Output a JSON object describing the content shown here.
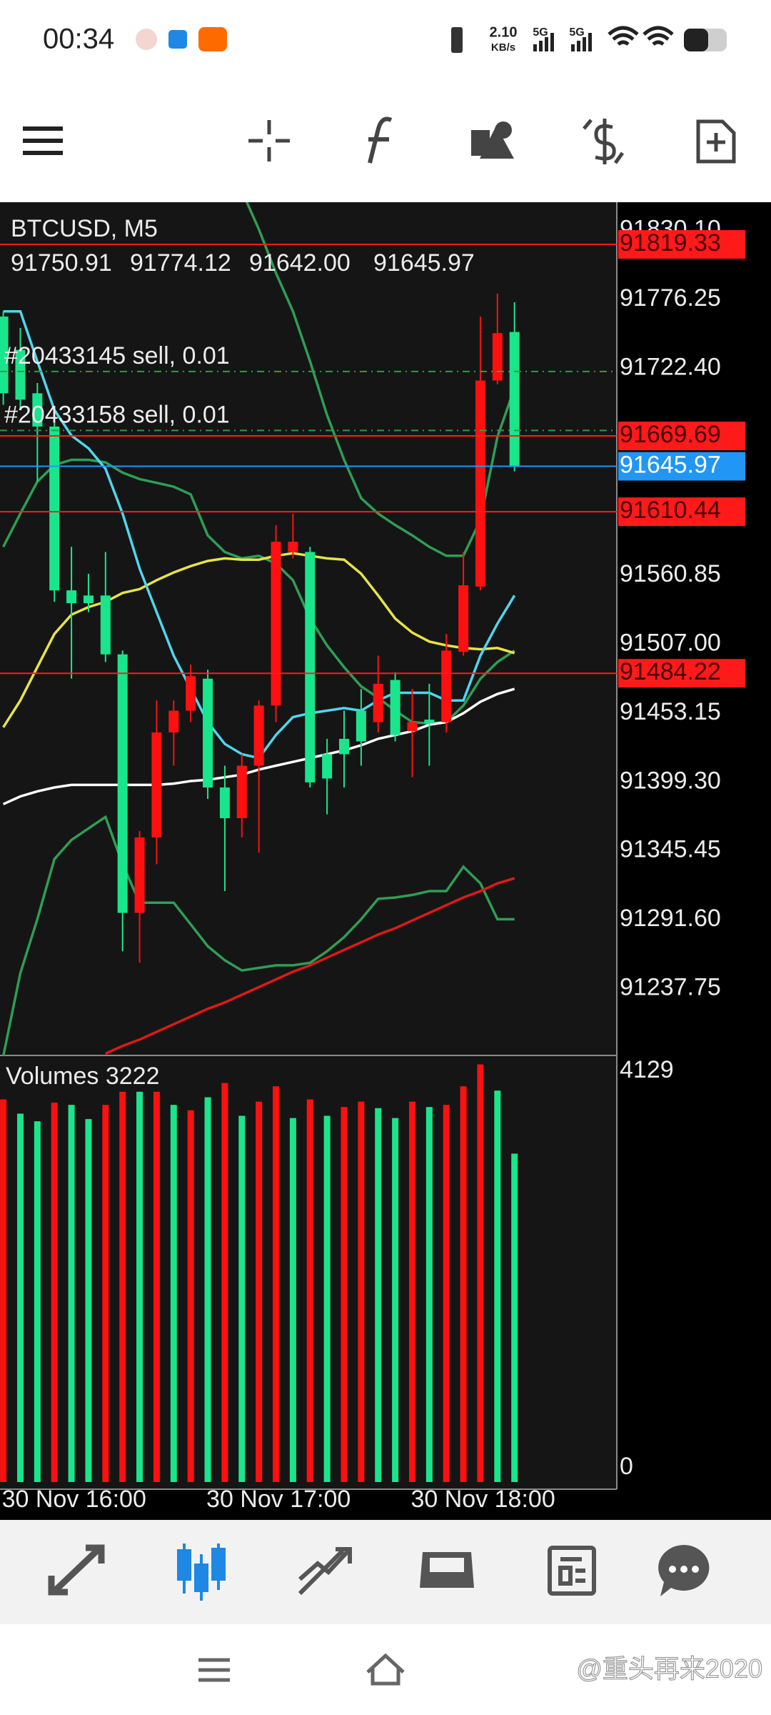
{
  "status_bar": {
    "time": "00:34",
    "net_speed": "2.10",
    "net_unit": "KB/s",
    "signal_1": "5G",
    "signal_2": "5G"
  },
  "chart_data": {
    "type": "candlestick",
    "symbol_title": "BTCUSD, M5",
    "last_ohlc_labels": [
      "91750.91",
      "91774.12",
      "91642.00",
      "91645.97"
    ],
    "categories": [
      "30 Nov 16:00",
      null,
      null,
      null,
      null,
      null,
      null,
      null,
      null,
      null,
      null,
      null,
      "30 Nov 17:00",
      null,
      null,
      null,
      null,
      null,
      null,
      null,
      null,
      null,
      null,
      null,
      "30 Nov 18:00",
      null,
      null,
      null,
      null,
      null,
      null
    ],
    "open": [
      91763,
      91737,
      91703,
      91677,
      91549,
      91545,
      91545,
      91499,
      91297,
      91356,
      91438,
      91455,
      91480,
      91395,
      91371,
      91412,
      91459,
      91579,
      91579,
      91421,
      91433,
      91455,
      91446,
      91479,
      91439,
      91448,
      91446,
      91501,
      91552,
      91713,
      91750.91
    ],
    "high": [
      91767,
      91754,
      91711,
      91686,
      91583,
      91562,
      91579,
      91502,
      91361,
      91463,
      91463,
      91491,
      91487,
      91412,
      91421,
      91463,
      91600,
      91609,
      91583,
      91433,
      91455,
      91472,
      91498,
      91485,
      91472,
      91476,
      91515,
      91579,
      91763,
      91781,
      91774.12
    ],
    "low": [
      91694,
      91690,
      91634,
      91540,
      91480,
      91532,
      91493,
      91267,
      91258,
      91335,
      91412,
      91446,
      91386,
      91314,
      91356,
      91344,
      91446,
      91574,
      91395,
      91374,
      91395,
      91412,
      91438,
      91431,
      91403,
      91412,
      91438,
      91498,
      91549,
      91710,
      91642
    ],
    "close": [
      91703,
      91698,
      91677,
      91549,
      91539,
      91539,
      91499,
      91297,
      91356,
      91438,
      91455,
      91482,
      91395,
      91371,
      91412,
      91459,
      91587,
      91587,
      91399,
      91402,
      91421,
      91431,
      91476,
      91436,
      91446,
      91445,
      91502,
      91553,
      91713,
      91750,
      91645.97
    ],
    "up_color": "#ff1010",
    "down_color": "#19e68c",
    "ylim": [
      91185.6,
      91852.3
    ],
    "yticks": [
      {
        "value": 91830.1,
        "label": "91830.10"
      },
      91776.25,
      {
        "value": 91722.4,
        "label": "91722.40"
      },
      91560.85,
      {
        "value": 91507,
        "label": "91507.00"
      },
      91453.15,
      {
        "value": 91399.3,
        "label": "91399.30"
      },
      91345.45,
      {
        "value": 91291.6,
        "label": "91291.60"
      },
      91237.75
    ],
    "grid": false,
    "price_lines": [
      {
        "value": 91819.33,
        "color": "#ff1a1a",
        "text_color": "#4a0000"
      },
      {
        "value": 91669.69,
        "color": "#ff1a1a",
        "text_color": "#4a0000"
      },
      {
        "value": 91645.97,
        "color": "#2196f3",
        "text_color": "#ffffff"
      },
      {
        "value": 91610.44,
        "color": "#ff1a1a",
        "text_color": "#4a0000"
      },
      {
        "value": 91484.22,
        "color": "#ff1a1a",
        "text_color": "#4a0000"
      }
    ],
    "orders": [
      {
        "label": "#20433145 sell, 0.01",
        "value": 91720,
        "color": "#2e9e3e"
      },
      {
        "label": "#20433158 sell, 0.01",
        "value": 91674,
        "color": "#2e9e3e"
      }
    ],
    "indicators": [
      {
        "color": "#2e9e55",
        "values": [
          null,
          null,
          null,
          null,
          null,
          null,
          null,
          null,
          null,
          null,
          null,
          null,
          null,
          null,
          91861,
          91831,
          91797,
          91767,
          91728,
          91686,
          91651,
          91621,
          91609,
          91600,
          91592,
          91583,
          91576,
          91576,
          91604,
          91669,
          91707
        ]
      },
      {
        "color": "#2e9e55",
        "values": [
          91583,
          91609,
          91634,
          91647,
          91651,
          91651,
          91649,
          91641,
          91636,
          91633,
          91630,
          91624,
          91592,
          91579,
          91574,
          91576,
          91570,
          91557,
          91527,
          91506,
          91489,
          91474,
          91465,
          91455,
          91446,
          91445,
          91446,
          91459,
          91480,
          91493,
          91502
        ]
      },
      {
        "color": "#2e9e55",
        "values": [
          91185,
          91250,
          91292,
          91339,
          91354,
          91363,
          91372,
          91335,
          91305,
          91305,
          91305,
          91288,
          91271,
          91260,
          91252,
          91254,
          91256,
          91256,
          91258,
          91267,
          91278,
          91292,
          91308,
          91309,
          91311,
          91314,
          91314,
          91333,
          91320,
          91292,
          91292
        ]
      },
      {
        "color": "#e6e34a",
        "values": [
          91442,
          91463,
          91489,
          91515,
          91530,
          91536,
          91540,
          91547,
          91550,
          91557,
          91563,
          91568,
          91572,
          91574,
          91573,
          91573,
          91576,
          91578,
          91576,
          91574,
          91573,
          91562,
          91545,
          91527,
          91516,
          91509,
          91506,
          91504,
          91503,
          91504,
          91500
        ]
      },
      {
        "color": "#ffffff",
        "values": [
          91382,
          91388,
          91392,
          91395,
          91397,
          91397,
          91397,
          91397,
          91397,
          91397,
          91398,
          91400,
          91401,
          91403,
          91405,
          91409,
          91412,
          91415,
          91418,
          91421,
          91424,
          91428,
          91433,
          91436,
          91439,
          91444,
          91446,
          91453,
          91462,
          91468,
          91472
        ]
      },
      {
        "color": "#dd1a1a",
        "values": [
          null,
          null,
          null,
          null,
          null,
          null,
          91187,
          91193,
          91198,
          91204,
          91210,
          91216,
          91222,
          91227,
          91233,
          91239,
          91245,
          91251,
          91256,
          91262,
          91268,
          91274,
          91280,
          91285,
          91291,
          91297,
          91303,
          91309,
          91314,
          91320,
          91324
        ]
      },
      {
        "color": "#4fd6ee",
        "values": [
          91767,
          91767,
          91728,
          91690,
          91670,
          91660,
          91644,
          91609,
          91566,
          91532,
          91498,
          91472,
          91446,
          91429,
          91421,
          91418,
          91436,
          91450,
          91453,
          91455,
          91457,
          91455,
          91463,
          91469,
          91469,
          91469,
          91463,
          91463,
          91498,
          91523,
          91545
        ]
      }
    ],
    "volume": {
      "title": "Volumes 3222",
      "values": [
        3754,
        3614,
        3539,
        3722,
        3700,
        3561,
        3700,
        3829,
        3829,
        3829,
        3700,
        3647,
        3775,
        3915,
        3593,
        3732,
        3882,
        3571,
        3754,
        3593,
        3679,
        3732,
        3668,
        3571,
        3732,
        3679,
        3700,
        3882,
        4097,
        3840,
        3222
      ],
      "colors": [
        "#ff1010",
        "#19e68c",
        "#19e68c",
        "#ff1010",
        "#19e68c",
        "#19e68c",
        "#ff1010",
        "#ff1010",
        "#19e68c",
        "#ff1010",
        "#19e68c",
        "#ff1010",
        "#19e68c",
        "#ff1010",
        "#19e68c",
        "#ff1010",
        "#ff1010",
        "#19e68c",
        "#ff1010",
        "#19e68c",
        "#ff1010",
        "#ff1010",
        "#19e68c",
        "#19e68c",
        "#ff1010",
        "#19e68c",
        "#ff1010",
        "#ff1010",
        "#ff1010",
        "#19e68c",
        "#19e68c"
      ],
      "ylim": [
        0,
        4129
      ],
      "yticks": [
        0,
        4129
      ]
    }
  },
  "nav_bar": {
    "watermark": "@重头再来2020"
  }
}
